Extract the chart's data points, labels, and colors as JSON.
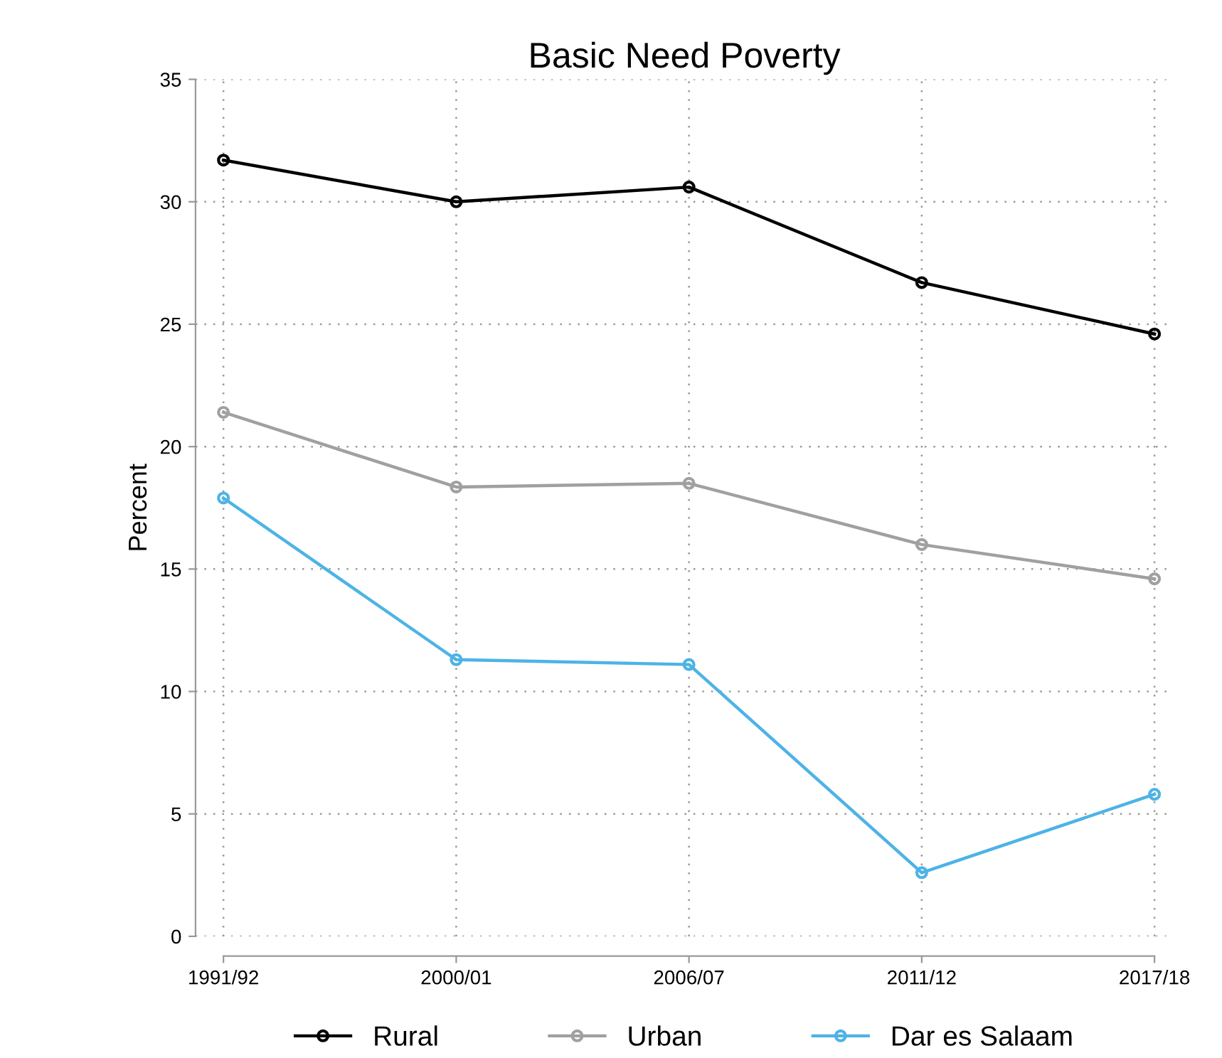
{
  "chart_data": {
    "type": "line",
    "title": "Basic Need Poverty",
    "ylabel": "Percent",
    "categories": [
      "1991/92",
      "2000/01",
      "2006/07",
      "2011/12",
      "2017/18"
    ],
    "series": [
      {
        "name": "Rural",
        "color": "#000000",
        "values": [
          31.7,
          30.0,
          30.6,
          26.7,
          24.6
        ]
      },
      {
        "name": "Urban",
        "color": "#a0a0a0",
        "values": [
          21.4,
          18.35,
          18.5,
          16.0,
          14.6
        ]
      },
      {
        "name": "Dar es Salaam",
        "color": "#4db3e6",
        "values": [
          17.9,
          11.3,
          11.1,
          2.6,
          5.8
        ]
      }
    ],
    "ylim": [
      0,
      35
    ],
    "yticks": [
      0,
      5,
      10,
      15,
      20,
      25,
      30,
      35
    ],
    "grid": true,
    "legend": "bottom",
    "marker": "circle",
    "line_style": "solid"
  }
}
